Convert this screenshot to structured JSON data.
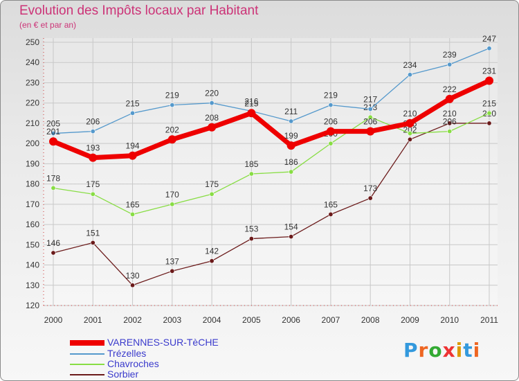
{
  "chart_data": {
    "type": "line",
    "title": "Evolution des Impôts locaux par Habitant",
    "subtitle": "(en € et par an)",
    "categories": [
      "2000",
      "2001",
      "2002",
      "2003",
      "2004",
      "2005",
      "2006",
      "2007",
      "2008",
      "2009",
      "2010",
      "2011"
    ],
    "ylim": [
      120,
      250
    ],
    "yticks": [
      120,
      130,
      140,
      150,
      160,
      170,
      180,
      190,
      200,
      210,
      220,
      230,
      240,
      250
    ],
    "grid": true,
    "legend_position": "bottom-left",
    "series": [
      {
        "name": "Sorbier",
        "color": "#6b1a1a",
        "values": [
          146,
          151,
          130,
          137,
          142,
          153,
          154,
          165,
          173,
          202,
          210,
          210
        ],
        "labels": [
          "146",
          "151",
          "130",
          "137",
          "142",
          "153",
          "154",
          "165",
          "173",
          "202",
          "210",
          "210"
        ]
      },
      {
        "name": "Chavroches",
        "color": "#88dd44",
        "values": [
          178,
          175,
          165,
          170,
          175,
          185,
          186,
          200,
          213,
          205,
          206,
          215
        ],
        "labels": [
          "178",
          "175",
          "165",
          "170",
          "175",
          "185",
          "186",
          "200",
          "213",
          "205",
          "206",
          "215"
        ]
      },
      {
        "name": "Trézelles",
        "color": "#5599cc",
        "values": [
          205,
          206,
          215,
          219,
          220,
          216,
          211,
          219,
          217,
          234,
          239,
          247
        ],
        "labels": [
          "205",
          "206",
          "215",
          "219",
          "220",
          "216",
          "211",
          "219",
          "217",
          "234",
          "239",
          "247"
        ]
      },
      {
        "name": "VARENNES-SUR-TèCHE",
        "color": "#ee0000",
        "values": [
          201,
          193,
          194,
          202,
          208,
          215,
          199,
          206,
          206,
          210,
          222,
          231
        ],
        "labels": [
          "201",
          "193",
          "194",
          "202",
          "208",
          "215",
          "199",
          "206",
          "206",
          "210",
          "222",
          "231"
        ]
      }
    ]
  },
  "legend": {
    "items": [
      {
        "label": "VARENNES-SUR-TèCHE",
        "color": "#ee0000"
      },
      {
        "label": "Trézelles",
        "color": "#5599cc"
      },
      {
        "label": "Chavroches",
        "color": "#88dd44"
      },
      {
        "label": "Sorbier",
        "color": "#6b1a1a"
      }
    ]
  },
  "logo": {
    "text": "Proxiti",
    "letters": [
      "P",
      "r",
      "o",
      "x",
      "i",
      "t",
      "i"
    ],
    "colors": [
      "#3399dd",
      "#ee6622",
      "#33aa33",
      "#ee3333",
      "#dd9900",
      "#3399dd",
      "#ee6622"
    ]
  }
}
